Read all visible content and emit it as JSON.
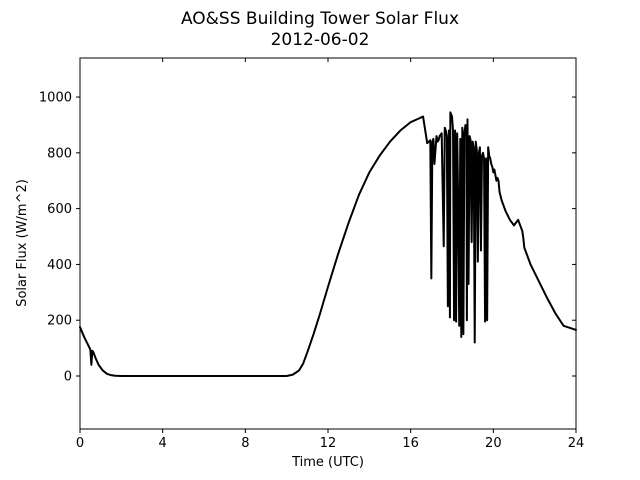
{
  "chart_data": {
    "type": "line",
    "title": "AO&SS Building Tower Solar Flux",
    "subtitle": "2012-06-02",
    "xlabel": "Time (UTC)",
    "ylabel": "Solar Flux (W/m^2)",
    "xlim": [
      0,
      24
    ],
    "ylim": [
      -190,
      1140
    ],
    "x_ticks": [
      0,
      4,
      8,
      12,
      16,
      20,
      24
    ],
    "y_ticks": [
      0,
      200,
      400,
      600,
      800,
      1000
    ],
    "x_tick_labels": [
      "0",
      "4",
      "8",
      "12",
      "16",
      "20",
      "24"
    ],
    "y_tick_labels": [
      "0",
      "200",
      "400",
      "600",
      "800",
      "1000"
    ],
    "grid": false,
    "legend": "none",
    "line_color": "#000000",
    "series": [
      {
        "x": [
          0,
          0.2,
          0.4,
          0.5,
          0.55,
          0.6,
          0.65,
          0.75,
          0.9,
          1.1,
          1.3,
          1.5,
          1.7,
          2.0,
          2.5,
          3,
          4,
          5,
          6,
          7,
          8,
          9,
          10,
          10.3,
          10.6,
          10.8,
          11.0,
          11.3,
          11.6,
          12,
          12.5,
          13,
          13.5,
          14,
          14.5,
          15,
          15.5,
          16,
          16.3,
          16.6,
          16.8,
          16.95,
          17.0,
          17.05,
          17.1,
          17.15,
          17.25,
          17.3,
          17.35,
          17.4,
          17.5,
          17.6,
          17.65,
          17.7,
          17.75,
          17.8,
          17.85,
          17.9,
          17.92,
          17.95,
          18.0,
          18.05,
          18.1,
          18.15,
          18.2,
          18.25,
          18.3,
          18.35,
          18.4,
          18.45,
          18.5,
          18.52,
          18.55,
          18.6,
          18.62,
          18.65,
          18.7,
          18.72,
          18.75,
          18.8,
          18.85,
          18.9,
          18.95,
          19.0,
          19.05,
          19.1,
          19.15,
          19.2,
          19.25,
          19.3,
          19.35,
          19.4,
          19.45,
          19.5,
          19.55,
          19.6,
          19.65,
          19.7,
          19.75,
          19.8,
          19.85,
          19.9,
          19.95,
          20.0,
          20.05,
          20.1,
          20.15,
          20.2,
          20.25,
          20.3,
          20.35,
          20.4,
          20.5,
          20.6,
          20.8,
          21.0,
          21.2,
          21.4,
          21.45,
          21.5,
          21.8,
          22.2,
          22.6,
          23.0,
          23.4,
          23.8,
          24.0
        ],
        "y": [
          175,
          140,
          110,
          95,
          40,
          90,
          85,
          65,
          40,
          20,
          8,
          3,
          1,
          0,
          0,
          0,
          0,
          0,
          0,
          0,
          0,
          0,
          0,
          5,
          20,
          45,
          85,
          150,
          220,
          320,
          440,
          550,
          650,
          730,
          790,
          840,
          880,
          910,
          920,
          930,
          835,
          845,
          350,
          840,
          850,
          760,
          860,
          840,
          845,
          860,
          870,
          465,
          890,
          880,
          860,
          250,
          880,
          210,
          945,
          940,
          930,
          880,
          200,
          880,
          195,
          870,
          620,
          180,
          850,
          140,
          890,
          870,
          150,
          860,
          880,
          900,
          860,
          200,
          920,
          330,
          860,
          845,
          480,
          840,
          820,
          120,
          840,
          810,
          410,
          800,
          820,
          450,
          790,
          800,
          780,
          195,
          780,
          200,
          820,
          790,
          780,
          760,
          750,
          730,
          740,
          720,
          700,
          710,
          700,
          660,
          645,
          630,
          610,
          590,
          560,
          540,
          560,
          520,
          495,
          460,
          400,
          340,
          280,
          225,
          180,
          170,
          165
        ],
        "x_desc": "hours"
      }
    ]
  }
}
